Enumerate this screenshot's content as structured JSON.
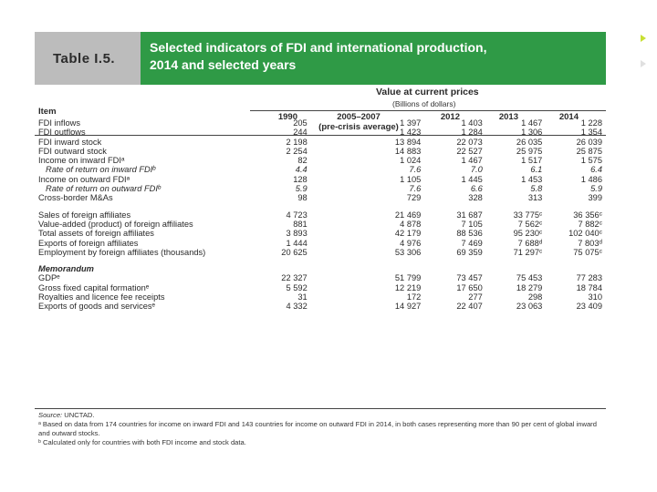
{
  "title_block": {
    "table_no": "Table I.5.",
    "title": "Selected indicators of FDI and international production,\n2014 and selected years"
  },
  "header": {
    "value_label": "Value at current prices",
    "unit": "(Billions of dollars)",
    "item": "Item",
    "columns": [
      "1990",
      "2005–2007\n(pre-crisis average)",
      "2012",
      "2013",
      "2014"
    ]
  },
  "rows": [
    {
      "label": "FDI inflows",
      "v": [
        "205",
        "1 397",
        "1 403",
        "1 467",
        "1 228"
      ]
    },
    {
      "label": "FDI outflows",
      "v": [
        "244",
        "1 423",
        "1 284",
        "1 306",
        "1 354"
      ]
    },
    {
      "label": "FDI inward stock",
      "v": [
        "2 198",
        "13 894",
        "22 073",
        "26 035",
        "26 039"
      ]
    },
    {
      "label": "FDI outward stock",
      "v": [
        "2 254",
        "14 883",
        "22 527",
        "25 975",
        "25 875"
      ]
    },
    {
      "label": "Income on inward FDIᵃ",
      "v": [
        "82",
        "1 024",
        "1 467",
        "1 517",
        "1 575"
      ]
    },
    {
      "label": "Rate of return on inward FDIᵇ",
      "v": [
        "4.4",
        "7.6",
        "7.0",
        "6.1",
        "6.4"
      ],
      "italic": true
    },
    {
      "label": "Income on outward FDIᵃ",
      "v": [
        "128",
        "1 105",
        "1 445",
        "1 453",
        "1 486"
      ]
    },
    {
      "label": "Rate of return on outward FDIᵇ",
      "v": [
        "5.9",
        "7.6",
        "6.6",
        "5.8",
        "5.9"
      ],
      "italic": true
    },
    {
      "label": "Cross-border M&As",
      "v": [
        "98",
        "729",
        "328",
        "313",
        "399"
      ]
    },
    {
      "label": "Sales of foreign affiliates",
      "v": [
        "4 723",
        "21 469",
        "31 687",
        "33 775ᶜ",
        "36 356ᶜ"
      ],
      "gap": true
    },
    {
      "label": "Value-added (product) of foreign affiliates",
      "v": [
        "881",
        "4 878",
        "7 105",
        "7 562ᶜ",
        "7 882ᶜ"
      ]
    },
    {
      "label": "Total assets of foreign affiliates",
      "v": [
        "3 893",
        "42 179",
        "88 536",
        "95 230ᶜ",
        "102 040ᶜ"
      ]
    },
    {
      "label": "Exports of foreign affiliates",
      "v": [
        "1 444",
        "4 976",
        "7 469",
        "7 688ᵈ",
        "7 803ᵈ"
      ]
    },
    {
      "label": "Employment by foreign affiliates (thousands)",
      "v": [
        "20 625",
        "53 306",
        "69 359",
        "71 297ᶜ",
        "75 075ᶜ"
      ]
    },
    {
      "label": "Memorandum",
      "memo": true,
      "v": [
        "",
        "",
        "",
        "",
        ""
      ],
      "gap": true
    },
    {
      "label": "GDPᵉ",
      "v": [
        "22 327",
        "51 799",
        "73 457",
        "75 453",
        "77 283"
      ]
    },
    {
      "label": "Gross fixed capital formationᵉ",
      "v": [
        "5 592",
        "12 219",
        "17 650",
        "18 279",
        "18 784"
      ]
    },
    {
      "label": "Royalties and licence fee receipts",
      "v": [
        "31",
        "172",
        "277",
        "298",
        "310"
      ]
    },
    {
      "label": "Exports of goods and servicesᵉ",
      "v": [
        "4 332",
        "14 927",
        "22 407",
        "23 063",
        "23 409"
      ]
    }
  ],
  "notes": {
    "source_label": "Source:",
    "source": "UNCTAD.",
    "a": "ᵃ  Based on data from 174 countries for income on inward FDI and 143 countries for income on outward FDI in 2014, in both cases representing more than 90 per cent of global inward and outward stocks.",
    "b": "ᵇ  Calculated only for countries with both FDI income and stock data."
  },
  "colors": {
    "title_green": "#2f9a46",
    "table_no_grey": "#bcbcbc",
    "accent_arrow": "#c8e032"
  }
}
